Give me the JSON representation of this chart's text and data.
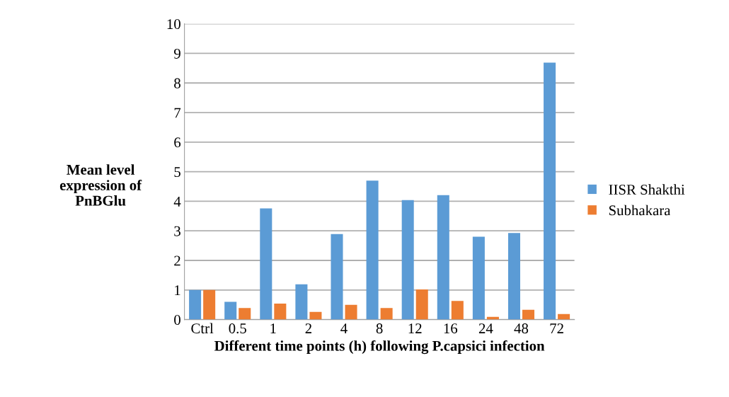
{
  "chart_data": {
    "type": "bar",
    "ylabel": "Mean level\nexpression of\nPnBGlu",
    "xlabel": "Different time points (h) following P.capsici infection",
    "categories": [
      "Ctrl",
      "0.5",
      "1",
      "2",
      "4",
      "8",
      "12",
      "16",
      "24",
      "48",
      "72"
    ],
    "series": [
      {
        "name": "IISR Shakthi",
        "color": "#5b9bd5",
        "values": [
          1.0,
          0.6,
          3.76,
          1.19,
          2.89,
          4.7,
          4.04,
          4.21,
          2.8,
          2.93,
          8.69
        ]
      },
      {
        "name": "Subhakara",
        "color": "#ed7d31",
        "values": [
          1.0,
          0.39,
          0.54,
          0.26,
          0.5,
          0.39,
          1.02,
          0.63,
          0.09,
          0.33,
          0.19
        ]
      }
    ],
    "ylim": [
      0,
      10
    ],
    "yticks": [
      0,
      1,
      2,
      3,
      4,
      5,
      6,
      7,
      8,
      9,
      10
    ],
    "grid": "y",
    "legend": "right"
  }
}
